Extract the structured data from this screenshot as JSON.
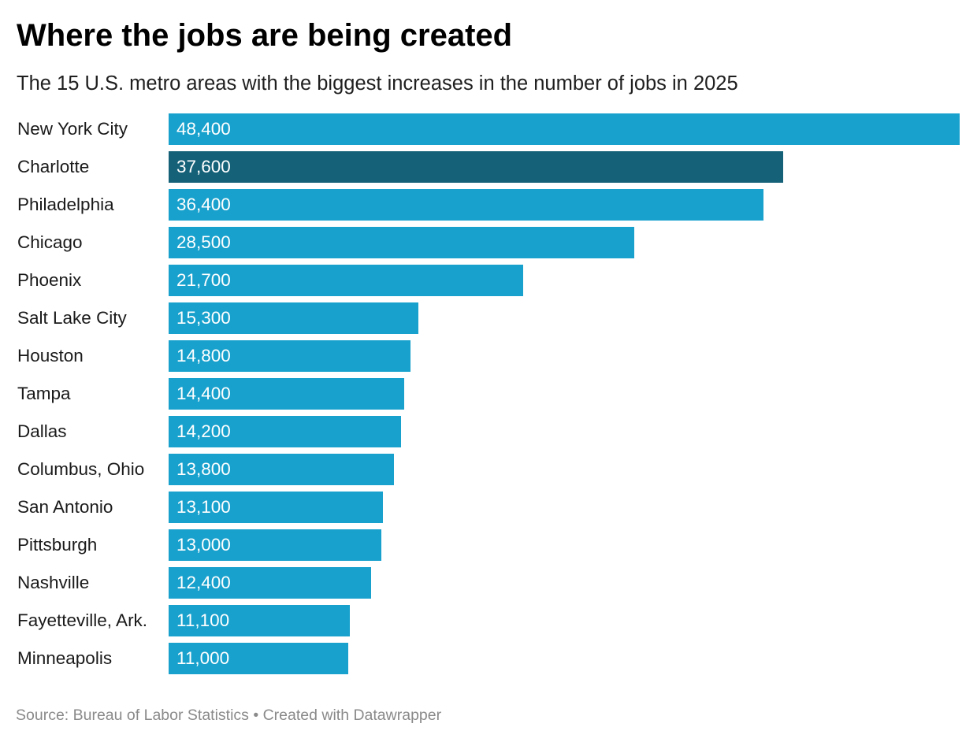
{
  "header": {
    "title": "Where the jobs are being created",
    "subtitle": "The 15 U.S. metro areas with the biggest increases in the number of jobs in 2025"
  },
  "footer": {
    "source": "Source: Bureau of Labor Statistics • Created with Datawrapper"
  },
  "colors": {
    "bar": "#18a1cd",
    "highlight": "#156178"
  },
  "chart_data": {
    "type": "bar",
    "orientation": "horizontal",
    "categories": [
      "New York City",
      "Charlotte",
      "Philadelphia",
      "Chicago",
      "Phoenix",
      "Salt Lake City",
      "Houston",
      "Tampa",
      "Dallas",
      "Columbus, Ohio",
      "San Antonio",
      "Pittsburgh",
      "Nashville",
      "Fayetteville, Ark.",
      "Minneapolis"
    ],
    "values": [
      48400,
      37600,
      36400,
      28500,
      21700,
      15300,
      14800,
      14400,
      14200,
      13800,
      13100,
      13000,
      12400,
      11100,
      11000
    ],
    "value_labels": [
      "48,400",
      "37,600",
      "36,400",
      "28,500",
      "21,700",
      "15,300",
      "14,800",
      "14,400",
      "14,200",
      "13,800",
      "13,100",
      "13,000",
      "12,400",
      "11,100",
      "11,000"
    ],
    "highlighted": [
      "Charlotte"
    ],
    "xlim": [
      0,
      48400
    ],
    "grid": false,
    "legend": "none"
  }
}
